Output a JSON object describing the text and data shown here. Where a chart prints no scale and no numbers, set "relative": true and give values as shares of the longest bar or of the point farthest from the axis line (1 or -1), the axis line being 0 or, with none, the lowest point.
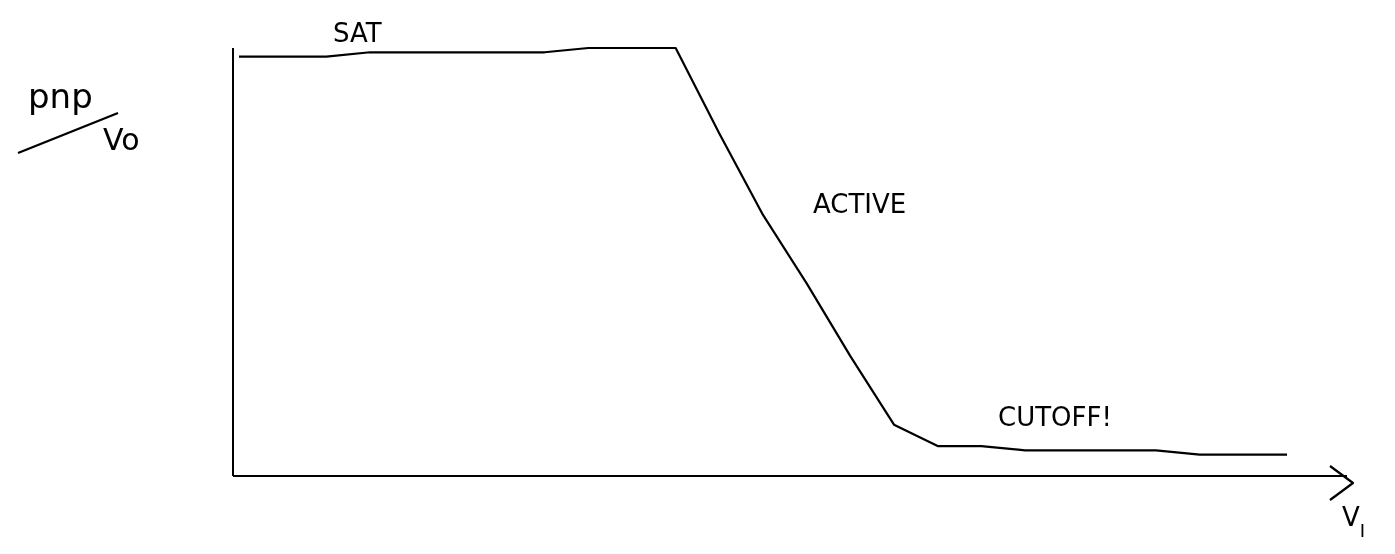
{
  "chart_data": {
    "type": "line",
    "relative": true,
    "title": "pnp",
    "ylabel": "Vo",
    "xlabel": "V$_{I}$",
    "categories": [
      null,
      null,
      null,
      null,
      null,
      null,
      null,
      null,
      null,
      null,
      null,
      null,
      null,
      null,
      null,
      null,
      null,
      null,
      null,
      null,
      null,
      null,
      null,
      null,
      null
    ],
    "series": [
      {
        "color": "#000000",
        "values": [
          0.98,
          0.98,
          0.98,
          0.99,
          0.99,
          0.99,
          0.99,
          0.99,
          1.0,
          1.0,
          1.0,
          0.8,
          0.61,
          0.45,
          0.28,
          0.12,
          0.07,
          0.07,
          0.06,
          0.06,
          0.06,
          0.06,
          0.05,
          0.05,
          0.05
        ]
      }
    ],
    "annotations": [
      "SAT",
      "ACTIVE",
      "CUTOFF!"
    ],
    "marker": "none",
    "line_style": "solid",
    "grid": false,
    "legend": false
  }
}
